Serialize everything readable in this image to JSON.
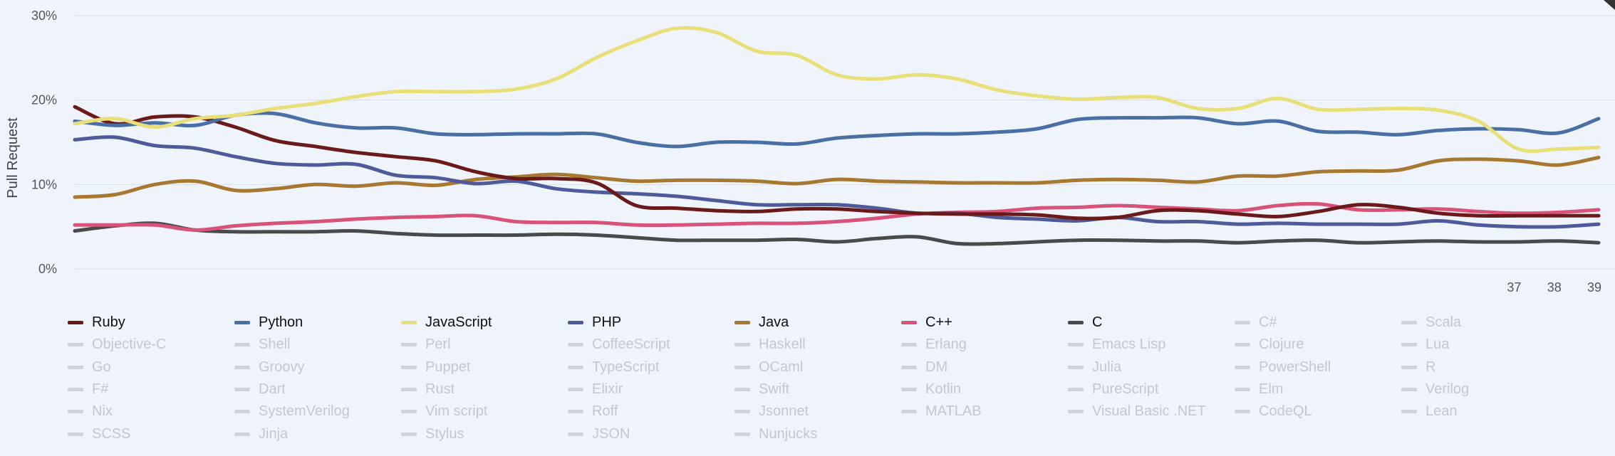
{
  "chart_data": {
    "type": "line",
    "ylabel": "Pull Request",
    "yticks": [
      "0%",
      "10%",
      "20%",
      "30%"
    ],
    "ylim": [
      0,
      30
    ],
    "xticks_visible": [
      {
        "x": 37,
        "label": "37"
      },
      {
        "x": 38,
        "label": "38"
      },
      {
        "x": 39,
        "label": "39"
      }
    ],
    "xlim": [
      1,
      39
    ],
    "grid": true,
    "legend_placement": "bottom",
    "x": [
      1,
      2,
      3,
      4,
      5,
      6,
      7,
      8,
      9,
      10,
      11,
      12,
      13,
      14,
      15,
      16,
      17,
      18,
      19,
      20,
      21,
      22,
      23,
      24,
      25,
      26,
      27,
      28,
      29,
      30,
      31,
      32,
      33,
      34,
      35,
      36,
      37,
      38,
      39
    ],
    "series": [
      {
        "name": "Ruby",
        "color": "#6b1a1a",
        "values": [
          19.2,
          17.2,
          18.0,
          18.0,
          16.8,
          15.2,
          14.5,
          13.8,
          13.3,
          12.8,
          11.5,
          10.7,
          10.7,
          10.2,
          7.5,
          7.2,
          6.9,
          6.8,
          7.1,
          7.1,
          6.8,
          6.6,
          6.5,
          6.5,
          6.4,
          6.0,
          6.1,
          6.9,
          6.9,
          6.5,
          6.2,
          6.8,
          7.6,
          7.3,
          6.6,
          6.3,
          6.3,
          6.3,
          6.3
        ]
      },
      {
        "name": "Python",
        "color": "#4a6fa5",
        "values": [
          17.5,
          17.0,
          17.3,
          17.0,
          18.2,
          18.4,
          17.3,
          16.7,
          16.7,
          16.0,
          15.9,
          16.0,
          16.0,
          16.0,
          15.0,
          14.5,
          15.0,
          15.0,
          14.8,
          15.5,
          15.8,
          16.0,
          16.0,
          16.2,
          16.6,
          17.7,
          17.9,
          17.9,
          17.9,
          17.2,
          17.5,
          16.3,
          16.2,
          15.9,
          16.4,
          16.6,
          16.5,
          16.1,
          17.8
        ]
      },
      {
        "name": "JavaScript",
        "color": "#e8df78",
        "values": [
          17.2,
          17.8,
          16.8,
          17.8,
          18.2,
          19.0,
          19.6,
          20.4,
          21.0,
          21.0,
          21.0,
          21.3,
          22.5,
          25.0,
          27.0,
          28.5,
          28.0,
          25.8,
          25.3,
          23.0,
          22.5,
          23.0,
          22.5,
          21.2,
          20.5,
          20.1,
          20.3,
          20.3,
          19.0,
          19.0,
          20.2,
          18.9,
          18.9,
          19.0,
          18.8,
          17.5,
          14.2,
          14.2,
          14.4
        ]
      },
      {
        "name": "PHP",
        "color": "#4e5a9a",
        "values": [
          15.3,
          15.6,
          14.6,
          14.3,
          13.3,
          12.5,
          12.3,
          12.4,
          11.1,
          10.8,
          10.1,
          10.4,
          9.5,
          9.1,
          8.9,
          8.6,
          8.1,
          7.6,
          7.6,
          7.6,
          7.2,
          6.6,
          6.6,
          6.1,
          5.9,
          5.7,
          6.1,
          5.6,
          5.6,
          5.3,
          5.4,
          5.3,
          5.3,
          5.3,
          5.7,
          5.2,
          5.0,
          5.0,
          5.3
        ]
      },
      {
        "name": "Java",
        "color": "#a87730",
        "values": [
          8.5,
          8.8,
          10.0,
          10.4,
          9.3,
          9.5,
          10.0,
          9.8,
          10.2,
          9.9,
          10.6,
          10.9,
          11.2,
          10.8,
          10.4,
          10.5,
          10.5,
          10.4,
          10.1,
          10.6,
          10.4,
          10.3,
          10.2,
          10.2,
          10.2,
          10.5,
          10.6,
          10.5,
          10.3,
          11.0,
          11.0,
          11.5,
          11.6,
          11.7,
          12.8,
          13.0,
          12.8,
          12.3,
          13.2
        ]
      },
      {
        "name": "C++",
        "color": "#d9527a",
        "values": [
          5.2,
          5.2,
          5.2,
          4.6,
          5.1,
          5.4,
          5.6,
          5.9,
          6.1,
          6.2,
          6.3,
          5.6,
          5.5,
          5.5,
          5.2,
          5.2,
          5.3,
          5.4,
          5.4,
          5.6,
          6.0,
          6.5,
          6.7,
          6.8,
          7.2,
          7.3,
          7.5,
          7.3,
          7.1,
          6.9,
          7.5,
          7.7,
          7.0,
          7.0,
          7.1,
          6.8,
          6.6,
          6.7,
          7.0
        ]
      },
      {
        "name": "C",
        "color": "#4a4a4a",
        "values": [
          4.5,
          5.1,
          5.4,
          4.6,
          4.4,
          4.4,
          4.4,
          4.5,
          4.2,
          4.0,
          4.0,
          4.0,
          4.1,
          4.0,
          3.7,
          3.4,
          3.4,
          3.4,
          3.5,
          3.2,
          3.6,
          3.8,
          3.0,
          3.0,
          3.2,
          3.4,
          3.4,
          3.3,
          3.3,
          3.1,
          3.3,
          3.4,
          3.1,
          3.2,
          3.3,
          3.2,
          3.2,
          3.3,
          3.1
        ]
      }
    ]
  },
  "legend": [
    {
      "label": "Ruby",
      "color": "#6b1a1a",
      "active": true
    },
    {
      "label": "Python",
      "color": "#4a6fa5",
      "active": true
    },
    {
      "label": "JavaScript",
      "color": "#e8df78",
      "active": true
    },
    {
      "label": "PHP",
      "color": "#4e5a9a",
      "active": true
    },
    {
      "label": "Java",
      "color": "#a87730",
      "active": true
    },
    {
      "label": "C++",
      "color": "#d9527a",
      "active": true
    },
    {
      "label": "C",
      "color": "#4a4a4a",
      "active": true
    },
    {
      "label": "C#",
      "active": false
    },
    {
      "label": "Scala",
      "active": false
    },
    {
      "label": "Objective-C",
      "active": false
    },
    {
      "label": "Shell",
      "active": false
    },
    {
      "label": "Perl",
      "active": false
    },
    {
      "label": "CoffeeScript",
      "active": false
    },
    {
      "label": "Haskell",
      "active": false
    },
    {
      "label": "Erlang",
      "active": false
    },
    {
      "label": "Emacs Lisp",
      "active": false
    },
    {
      "label": "Clojure",
      "active": false
    },
    {
      "label": "Lua",
      "active": false
    },
    {
      "label": "Go",
      "active": false
    },
    {
      "label": "Groovy",
      "active": false
    },
    {
      "label": "Puppet",
      "active": false
    },
    {
      "label": "TypeScript",
      "active": false
    },
    {
      "label": "OCaml",
      "active": false
    },
    {
      "label": "DM",
      "active": false
    },
    {
      "label": "Julia",
      "active": false
    },
    {
      "label": "PowerShell",
      "active": false
    },
    {
      "label": "R",
      "active": false
    },
    {
      "label": "F#",
      "active": false
    },
    {
      "label": "Dart",
      "active": false
    },
    {
      "label": "Rust",
      "active": false
    },
    {
      "label": "Elixir",
      "active": false
    },
    {
      "label": "Swift",
      "active": false
    },
    {
      "label": "Kotlin",
      "active": false
    },
    {
      "label": "PureScript",
      "active": false
    },
    {
      "label": "Elm",
      "active": false
    },
    {
      "label": "Verilog",
      "active": false
    },
    {
      "label": "Nix",
      "active": false
    },
    {
      "label": "SystemVerilog",
      "active": false
    },
    {
      "label": "Vim script",
      "active": false
    },
    {
      "label": "Roff",
      "active": false
    },
    {
      "label": "Jsonnet",
      "active": false
    },
    {
      "label": "MATLAB",
      "active": false
    },
    {
      "label": "Visual Basic .NET",
      "active": false
    },
    {
      "label": "CodeQL",
      "active": false
    },
    {
      "label": "Lean",
      "active": false
    },
    {
      "label": "SCSS",
      "active": false
    },
    {
      "label": "Jinja",
      "active": false
    },
    {
      "label": "Stylus",
      "active": false
    },
    {
      "label": "JSON",
      "active": false
    },
    {
      "label": "Nunjucks",
      "active": false
    }
  ]
}
